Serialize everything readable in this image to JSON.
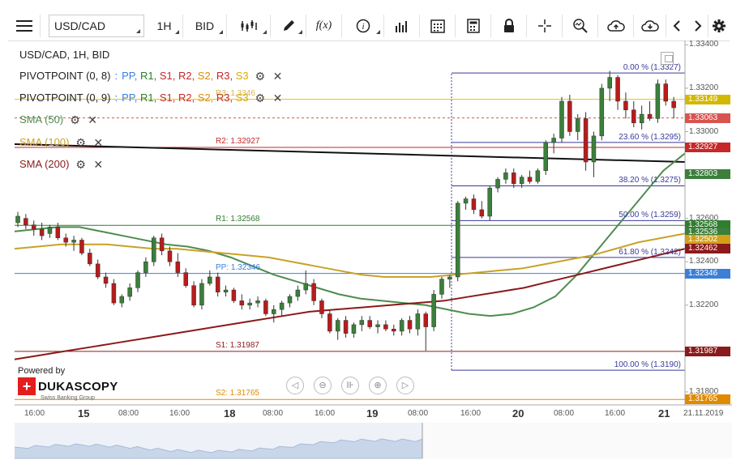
{
  "toolbar": {
    "menu_icon": "hamburger-menu-icon",
    "symbol": "USD/CAD",
    "timeframe": "1H",
    "side": "BID",
    "buttons": [
      "candles-icon",
      "pencil-icon",
      "fx-icon",
      "info-icon",
      "volume-bars-icon",
      "calendar-icon",
      "calculator-icon",
      "lock-icon",
      "crosshair-icon",
      "zoom-icon",
      "cloud-upload-icon",
      "cloud-download-icon",
      "chevron-left-icon",
      "chevron-right-icon",
      "settings-gear-icon"
    ],
    "fx_label": "f(x)"
  },
  "legend": {
    "title": "USD/CAD, 1H, BID",
    "pivot1_name": "PIVOTPOINT (0, 8)",
    "pivot2_name": "PIVOTPOINT (0, 9)",
    "pivot_sep": ":",
    "pivot_items": [
      "PP,",
      "R1,",
      "S1,",
      "R2,",
      "S2,",
      "R3,",
      "S3"
    ],
    "pivot_colors": [
      "#3b7fd9",
      "#2f7d2f",
      "#c62828",
      "#c62828",
      "#e08a00",
      "#c62828",
      "#e0a800"
    ],
    "sma1": "SMA (50)",
    "sma2": "SMA (100)",
    "sma3": "SMA (200)",
    "sma_colors": [
      "#4e8c4e",
      "#c9a227",
      "#8b1a1a"
    ],
    "overlap_text": "R3: 1.3346"
  },
  "chart_data": {
    "type": "candlestick",
    "symbol": "USD/CAD",
    "timeframe": "1H",
    "price_axis_ticks": [
      "1.33400",
      "1.33200",
      "1.33000",
      "1.32600",
      "1.32400",
      "1.32200",
      "1.31800"
    ],
    "time_axis": [
      {
        "label": "16:00",
        "kind": "time"
      },
      {
        "label": "15",
        "kind": "day"
      },
      {
        "label": "08:00",
        "kind": "time"
      },
      {
        "label": "16:00",
        "kind": "time"
      },
      {
        "label": "18",
        "kind": "day"
      },
      {
        "label": "08:00",
        "kind": "time"
      },
      {
        "label": "16:00",
        "kind": "time"
      },
      {
        "label": "19",
        "kind": "day"
      },
      {
        "label": "08:00",
        "kind": "time"
      },
      {
        "label": "16:00",
        "kind": "time"
      },
      {
        "label": "20",
        "kind": "day"
      },
      {
        "label": "08:00",
        "kind": "time"
      },
      {
        "label": "16:00",
        "kind": "time"
      },
      {
        "label": "21",
        "kind": "day"
      },
      {
        "label": "21.11.2019",
        "kind": "time"
      }
    ],
    "pivot_levels": [
      {
        "label": "R2: 1.32927",
        "value": 1.32927,
        "color": "#c62828"
      },
      {
        "label": "R1: 1.32568",
        "value": 1.32568,
        "color": "#2f7d2f"
      },
      {
        "label": "PP: 1.32346",
        "value": 1.32346,
        "color": "#3b7fd9"
      },
      {
        "label": "S1: 1.31987",
        "value": 1.31987,
        "color": "#8b1a1a"
      },
      {
        "label": "S2: 1.31765",
        "value": 1.31765,
        "color": "#e08a00"
      }
    ],
    "fib_levels": [
      {
        "label": "0.00 % (1.3327)",
        "value": 1.3327
      },
      {
        "label": "23.60 % (1.3295)",
        "value": 1.3295
      },
      {
        "label": "38.20 % (1.3275)",
        "value": 1.3275
      },
      {
        "label": "50.00 % (1.3259)",
        "value": 1.3259
      },
      {
        "label": "61.80 % (1.3242)",
        "value": 1.3242
      },
      {
        "label": "100.00 % (1.3190)",
        "value": 1.319
      }
    ],
    "price_tags": [
      {
        "value": "1.33149",
        "color": "#d4b800"
      },
      {
        "value": "1.33063",
        "color": "#d9534f"
      },
      {
        "value": "1.32927",
        "color": "#c62828"
      },
      {
        "value": "1.32803",
        "color": "#3b7f3b"
      },
      {
        "value": "1.32568",
        "color": "#2f7d2f"
      },
      {
        "value": "1.32536",
        "color": "#3b7f3b"
      },
      {
        "value": "1.32502",
        "color": "#d4a017"
      },
      {
        "value": "1.32462",
        "color": "#8b1a1a"
      },
      {
        "value": "1.32346",
        "color": "#3b7fd9"
      },
      {
        "value": "1.31987",
        "color": "#8b1a1a"
      },
      {
        "value": "1.31765",
        "color": "#e08a00"
      }
    ],
    "candles": [
      [
        1.3258,
        1.3263,
        1.3256,
        1.3261
      ],
      [
        1.326,
        1.3262,
        1.3255,
        1.3257
      ],
      [
        1.3257,
        1.3259,
        1.3252,
        1.3255
      ],
      [
        1.3255,
        1.3258,
        1.325,
        1.3252
      ],
      [
        1.3253,
        1.3257,
        1.3251,
        1.3256
      ],
      [
        1.3256,
        1.3258,
        1.325,
        1.3251
      ],
      [
        1.3251,
        1.3253,
        1.3247,
        1.3249
      ],
      [
        1.3249,
        1.3252,
        1.3245,
        1.325
      ],
      [
        1.325,
        1.3251,
        1.3243,
        1.3244
      ],
      [
        1.3244,
        1.3246,
        1.3238,
        1.3239
      ],
      [
        1.3239,
        1.3241,
        1.3232,
        1.3233
      ],
      [
        1.3233,
        1.3235,
        1.3228,
        1.323
      ],
      [
        1.323,
        1.3232,
        1.322,
        1.3221
      ],
      [
        1.3221,
        1.3225,
        1.3219,
        1.3224
      ],
      [
        1.3224,
        1.323,
        1.3222,
        1.3228
      ],
      [
        1.3228,
        1.3236,
        1.3226,
        1.3235
      ],
      [
        1.3235,
        1.3242,
        1.3233,
        1.324
      ],
      [
        1.324,
        1.3252,
        1.3238,
        1.3251
      ],
      [
        1.3251,
        1.3253,
        1.3243,
        1.3245
      ],
      [
        1.3245,
        1.3247,
        1.3238,
        1.324
      ],
      [
        1.324,
        1.3244,
        1.3233,
        1.3235
      ],
      [
        1.3235,
        1.3237,
        1.3228,
        1.3229
      ],
      [
        1.3229,
        1.3231,
        1.3219,
        1.322
      ],
      [
        1.322,
        1.3232,
        1.3218,
        1.323
      ],
      [
        1.323,
        1.3236,
        1.3229,
        1.3233
      ],
      [
        1.3233,
        1.3235,
        1.3224,
        1.3226
      ],
      [
        1.3226,
        1.3229,
        1.3224,
        1.3227
      ],
      [
        1.3227,
        1.3228,
        1.3221,
        1.3222
      ],
      [
        1.3222,
        1.3225,
        1.3218,
        1.322
      ],
      [
        1.322,
        1.3223,
        1.3218,
        1.3221
      ],
      [
        1.3221,
        1.3224,
        1.3219,
        1.3222
      ],
      [
        1.3222,
        1.3223,
        1.3215,
        1.3216
      ],
      [
        1.3216,
        1.322,
        1.3212,
        1.3218
      ],
      [
        1.3218,
        1.3222,
        1.3215,
        1.3221
      ],
      [
        1.3221,
        1.3225,
        1.3219,
        1.3224
      ],
      [
        1.3224,
        1.3229,
        1.3222,
        1.3227
      ],
      [
        1.3227,
        1.3236,
        1.3225,
        1.323
      ],
      [
        1.323,
        1.3232,
        1.322,
        1.3222
      ],
      [
        1.3222,
        1.3223,
        1.3214,
        1.3216
      ],
      [
        1.3216,
        1.3218,
        1.3207,
        1.3208
      ],
      [
        1.3208,
        1.3214,
        1.3204,
        1.3213
      ],
      [
        1.3213,
        1.3215,
        1.3205,
        1.3207
      ],
      [
        1.3207,
        1.3212,
        1.3205,
        1.3211
      ],
      [
        1.3211,
        1.3215,
        1.3208,
        1.3213
      ],
      [
        1.3213,
        1.3215,
        1.3209,
        1.321
      ],
      [
        1.321,
        1.3213,
        1.3207,
        1.3211
      ],
      [
        1.3211,
        1.3213,
        1.3208,
        1.3209
      ],
      [
        1.3209,
        1.3211,
        1.3206,
        1.3208
      ],
      [
        1.3208,
        1.3214,
        1.3206,
        1.3213
      ],
      [
        1.3213,
        1.3215,
        1.3207,
        1.3209
      ],
      [
        1.3209,
        1.3218,
        1.3206,
        1.3216
      ],
      [
        1.3216,
        1.3217,
        1.3199,
        1.321
      ],
      [
        1.321,
        1.3227,
        1.3208,
        1.3225
      ],
      [
        1.3225,
        1.3233,
        1.3223,
        1.3232
      ],
      [
        1.3232,
        1.3234,
        1.3228,
        1.3233
      ],
      [
        1.3233,
        1.3268,
        1.3231,
        1.3267
      ],
      [
        1.3267,
        1.327,
        1.3264,
        1.3269
      ],
      [
        1.3269,
        1.3271,
        1.3262,
        1.3264
      ],
      [
        1.3264,
        1.3268,
        1.326,
        1.3261
      ],
      [
        1.3261,
        1.3275,
        1.3259,
        1.3274
      ],
      [
        1.3274,
        1.3279,
        1.3272,
        1.3278
      ],
      [
        1.3278,
        1.3283,
        1.3276,
        1.3281
      ],
      [
        1.3281,
        1.3283,
        1.3274,
        1.3276
      ],
      [
        1.3276,
        1.328,
        1.3274,
        1.3279
      ],
      [
        1.3279,
        1.3282,
        1.3276,
        1.3277
      ],
      [
        1.3277,
        1.3283,
        1.3276,
        1.3282
      ],
      [
        1.3282,
        1.3296,
        1.328,
        1.3295
      ],
      [
        1.3295,
        1.3299,
        1.329,
        1.3297
      ],
      [
        1.3297,
        1.3316,
        1.3295,
        1.3314
      ],
      [
        1.3314,
        1.3317,
        1.3298,
        1.33
      ],
      [
        1.33,
        1.3308,
        1.3296,
        1.3306
      ],
      [
        1.3306,
        1.3309,
        1.3282,
        1.3286
      ],
      [
        1.3286,
        1.33,
        1.3279,
        1.3298
      ],
      [
        1.3298,
        1.3322,
        1.3296,
        1.332
      ],
      [
        1.332,
        1.3328,
        1.3314,
        1.3325
      ],
      [
        1.3325,
        1.3326,
        1.331,
        1.3314
      ],
      [
        1.3314,
        1.3318,
        1.3306,
        1.331
      ],
      [
        1.331,
        1.3314,
        1.3302,
        1.3304
      ],
      [
        1.3304,
        1.3312,
        1.3301,
        1.3308
      ],
      [
        1.3308,
        1.3314,
        1.3305,
        1.3306
      ],
      [
        1.3306,
        1.3324,
        1.3304,
        1.3322
      ],
      [
        1.3322,
        1.3324,
        1.3312,
        1.3314
      ],
      [
        1.3314,
        1.3316,
        1.3306,
        1.3311
      ]
    ],
    "sma50": [
      1.3254,
      1.3255,
      1.3256,
      1.3256,
      1.3254,
      1.3252,
      1.325,
      1.3248,
      1.3247,
      1.3245,
      1.3242,
      1.3238,
      1.3234,
      1.3231,
      1.3228,
      1.3225,
      1.3223,
      1.3222,
      1.3221,
      1.322,
      1.3218,
      1.3216,
      1.3215,
      1.3216,
      1.3219,
      1.3224,
      1.3234,
      1.3246,
      1.3258,
      1.327,
      1.3282,
      1.329
    ],
    "sma100": [
      1.3246,
      1.3247,
      1.3248,
      1.3248,
      1.3248,
      1.3247,
      1.3246,
      1.3246,
      1.3245,
      1.3244,
      1.3243,
      1.3242,
      1.324,
      1.3238,
      1.3236,
      1.3234,
      1.3233,
      1.3233,
      1.3233,
      1.3234,
      1.3235,
      1.3236,
      1.3237,
      1.3239,
      1.3241,
      1.3243,
      1.3246,
      1.3249,
      1.3251,
      1.3253
    ],
    "sma200": [
      1.3195,
      1.3197,
      1.3199,
      1.3201,
      1.3203,
      1.3205,
      1.3207,
      1.3209,
      1.3211,
      1.3213,
      1.3215,
      1.3217,
      1.3218,
      1.3219,
      1.322,
      1.3221,
      1.3222,
      1.3224,
      1.3226,
      1.3228,
      1.3231,
      1.3234,
      1.3237,
      1.324,
      1.3243,
      1.3246
    ]
  },
  "watermark": {
    "powered_by": "Powered by",
    "brand": "DUKASCOPY",
    "tagline": "Swiss Banking Group"
  },
  "nav_controls": [
    "arrow-left-icon",
    "zoom-out-icon",
    "fit-icon",
    "zoom-in-icon",
    "arrow-right-icon"
  ]
}
